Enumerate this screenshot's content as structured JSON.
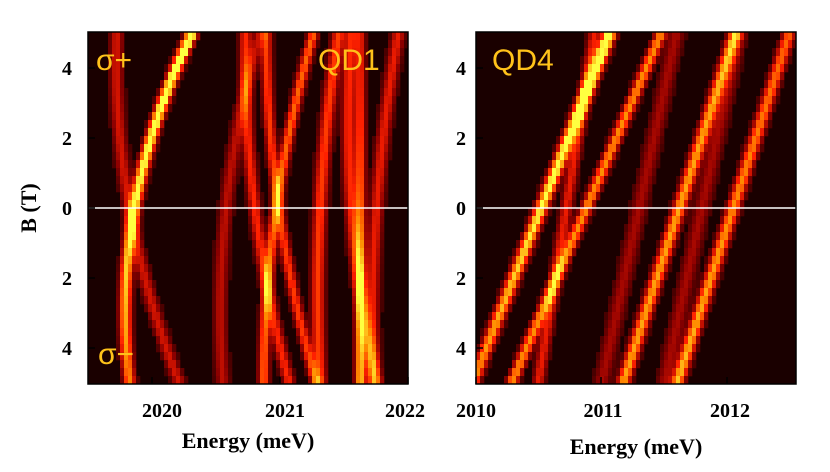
{
  "chart_data": [
    {
      "type": "heatmap",
      "panel_label": "QD1",
      "polarization_top": "σ+",
      "polarization_bottom": "σ−",
      "xlabel": "Energy (meV)",
      "ylabel": "B (T)",
      "xlim": [
        2019.45,
        2022.0
      ],
      "ylim": [
        -5,
        5
      ],
      "x_ticks": [
        "2020",
        "2021",
        "2022"
      ],
      "y_ticks_top": [
        "4",
        "2",
        "0"
      ],
      "y_ticks_bottom": [
        "2",
        "4"
      ],
      "separator_at_B": 0,
      "colormap": [
        "#1a0000",
        "#8b0000",
        "#ff2000",
        "#ff8c00",
        "#ffff40"
      ],
      "lines": [
        {
          "E0": 2019.82,
          "shift": 0.05,
          "curv": 0.0085,
          "width": 0.045,
          "intensity": 0.95,
          "ramp": 0.6
        },
        {
          "E0": 2019.78,
          "shift": -0.05,
          "curv": 0.006,
          "width": 0.05,
          "intensity": 0.35,
          "ramp": 0
        },
        {
          "E0": 2020.55,
          "shift": 0.03,
          "curv": 0.005,
          "width": 0.05,
          "intensity": 0.3,
          "ramp": 0
        },
        {
          "E0": 2020.78,
          "shift": -0.035,
          "curv": 0.004,
          "width": 0.045,
          "intensity": 0.45,
          "ramp": 0
        },
        {
          "E0": 2020.95,
          "shift": 0.04,
          "curv": 0.004,
          "width": 0.04,
          "intensity": 0.6,
          "ramp": 0
        },
        {
          "E0": 2020.97,
          "shift": -0.04,
          "curv": 0.004,
          "width": 0.04,
          "intensity": 0.5,
          "ramp": 0
        },
        {
          "E0": 2021.3,
          "shift": 0.015,
          "curv": 0.003,
          "width": 0.05,
          "intensity": 0.5,
          "ramp": 0
        },
        {
          "E0": 2021.55,
          "shift": -0.02,
          "curv": 0.004,
          "width": 0.05,
          "intensity": 0.45,
          "ramp": 0
        },
        {
          "E0": 2021.62,
          "shift": 0.0,
          "curv": 0.0,
          "width": 0.04,
          "intensity": 0.6,
          "ramp": -0.8
        },
        {
          "E0": 2021.75,
          "shift": 0.02,
          "curv": 0.003,
          "width": 0.05,
          "intensity": 0.4,
          "ramp": 0
        }
      ]
    },
    {
      "type": "heatmap",
      "panel_label": "QD4",
      "xlabel": "Energy (meV)",
      "ylabel": "",
      "xlim": [
        2010.0,
        2012.55
      ],
      "ylim": [
        -5,
        5
      ],
      "x_ticks": [
        "2010",
        "2011",
        "2012"
      ],
      "y_ticks_top": [
        "4",
        "2",
        "0"
      ],
      "y_ticks_bottom": [
        "2",
        "4"
      ],
      "separator_at_B": 0,
      "colormap": [
        "#1a0000",
        "#8b0000",
        "#ff2000",
        "#ff8c00",
        "#ffff40"
      ],
      "lines": [
        {
          "E0": 2010.52,
          "shift": 0.11,
          "curv": 0.0,
          "width": 0.05,
          "intensity": 0.95,
          "ramp": 0.6
        },
        {
          "E0": 2010.88,
          "shift": 0.12,
          "curv": 0.0,
          "width": 0.045,
          "intensity": 0.7,
          "ramp": 0
        },
        {
          "E0": 2010.72,
          "shift": 0.045,
          "curv": 0.0,
          "width": 0.045,
          "intensity": 0.4,
          "ramp": 0
        },
        {
          "E0": 2011.62,
          "shift": 0.09,
          "curv": 0.0,
          "width": 0.05,
          "intensity": 0.75,
          "ramp": 0
        },
        {
          "E0": 2012.05,
          "shift": 0.09,
          "curv": 0.0,
          "width": 0.05,
          "intensity": 0.7,
          "ramp": -0.3
        },
        {
          "E0": 2011.3,
          "shift": 0.06,
          "curv": 0.0,
          "width": 0.06,
          "intensity": 0.25,
          "ramp": 0
        },
        {
          "E0": 2011.8,
          "shift": 0.06,
          "curv": 0.0,
          "width": 0.06,
          "intensity": 0.25,
          "ramp": 0
        }
      ]
    }
  ]
}
